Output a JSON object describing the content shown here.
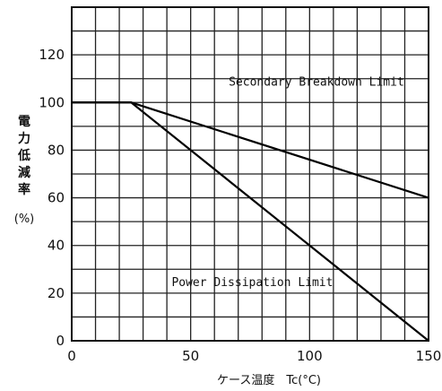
{
  "chart_data": {
    "type": "line",
    "title": "",
    "xlabel": "ケース温度　Tc(°C)",
    "ylabel_chars": [
      "電",
      "力",
      "低",
      "減",
      "率"
    ],
    "ylabel_unit": "(%)",
    "xlim": [
      0,
      150
    ],
    "ylim": [
      0,
      140
    ],
    "x_ticks": [
      0,
      50,
      100,
      150
    ],
    "y_ticks": [
      0,
      20,
      40,
      60,
      80,
      100,
      120
    ],
    "grid": true,
    "x_grid_step": 10,
    "y_grid_step": 10,
    "series": [
      {
        "name": "Secondary Breakdown Limit",
        "x": [
          0,
          25,
          150
        ],
        "y": [
          100,
          100,
          60
        ]
      },
      {
        "name": "Power Dissipation Limit",
        "x": [
          0,
          25,
          150
        ],
        "y": [
          100,
          100,
          0
        ]
      }
    ]
  }
}
